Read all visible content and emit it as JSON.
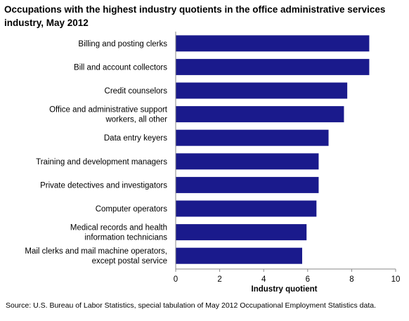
{
  "title": "Occupations with the highest industry quotients in the office administrative services industry, May 2012",
  "source": "Source: U.S. Bureau of Labor Statistics, special tabulation of May 2012 Occupational Employment Statistics data.",
  "chart_data": {
    "type": "bar",
    "orientation": "horizontal",
    "categories": [
      [
        "Billing and posting clerks"
      ],
      [
        "Bill and account collectors"
      ],
      [
        "Credit counselors"
      ],
      [
        "Office and administrative support",
        "workers, all other"
      ],
      [
        "Data entry keyers"
      ],
      [
        "Training and development managers"
      ],
      [
        "Private detectives and investigators"
      ],
      [
        "Computer operators"
      ],
      [
        "Medical records and health",
        "information technicians"
      ],
      [
        "Mail clerks and mail machine operators,",
        "except postal service"
      ]
    ],
    "values": [
      8.8,
      8.8,
      7.8,
      7.65,
      6.95,
      6.5,
      6.5,
      6.4,
      5.95,
      5.75
    ],
    "xlabel": "Industry quotient",
    "ylabel": "",
    "xlim": [
      0,
      10
    ],
    "xticks": [
      0,
      2,
      4,
      6,
      8,
      10
    ],
    "bar_color": "#1a1a8c",
    "grid": false
  }
}
